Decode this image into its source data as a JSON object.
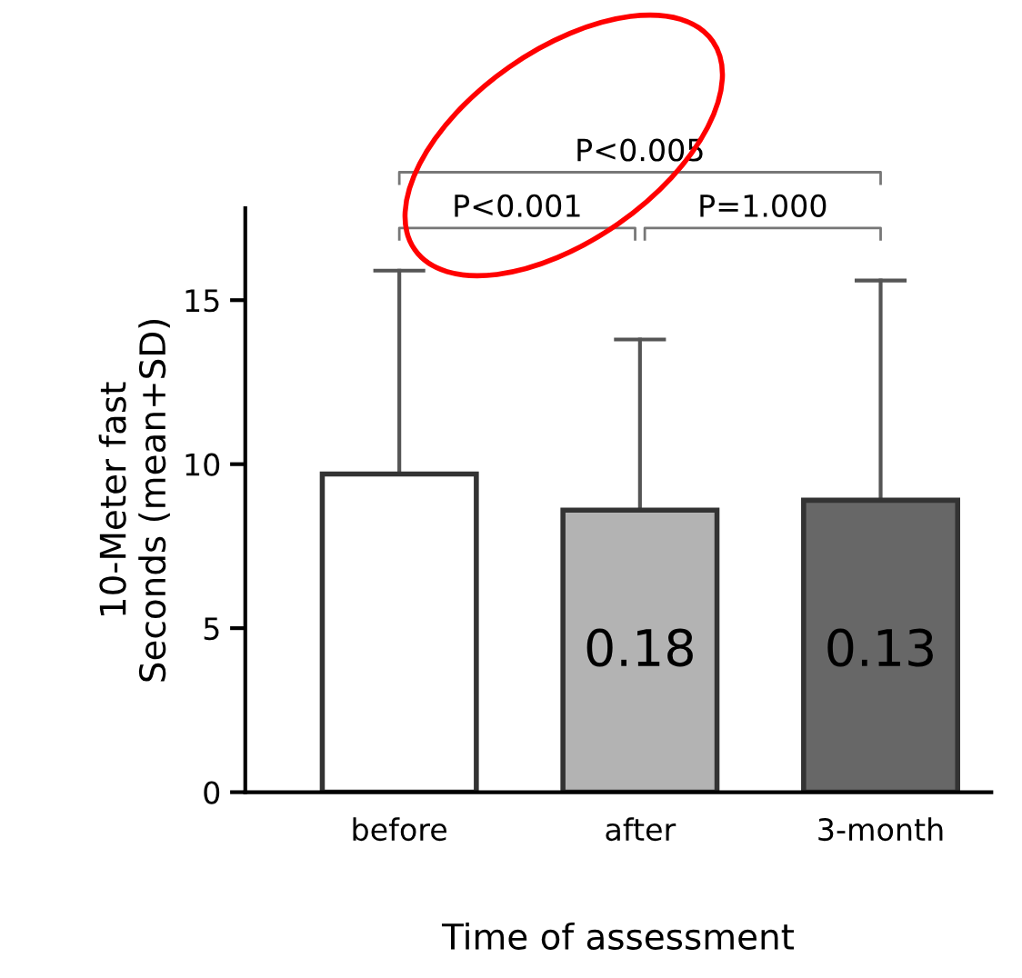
{
  "chart_data": {
    "type": "bar",
    "xlabel": "Time of assessment",
    "ylabel": "10-Meter fast\nSeconds (mean+SD)",
    "categories": [
      "before",
      "after",
      "3-month"
    ],
    "values": [
      9.7,
      8.6,
      8.9
    ],
    "colors": [
      "#ffffff",
      "#b3b3b3",
      "#676767"
    ],
    "errors": [
      [
        9.7,
        15.9
      ],
      [
        8.6,
        13.8
      ],
      [
        8.9,
        15.6
      ]
    ],
    "ylim": [
      0,
      17.8
    ],
    "yticks": [
      0,
      5,
      10,
      15
    ],
    "grid": false,
    "legend": false,
    "annotations": [
      "P<0.005",
      "P<0.001",
      "P=1.000",
      "0.18",
      "0.13"
    ]
  }
}
